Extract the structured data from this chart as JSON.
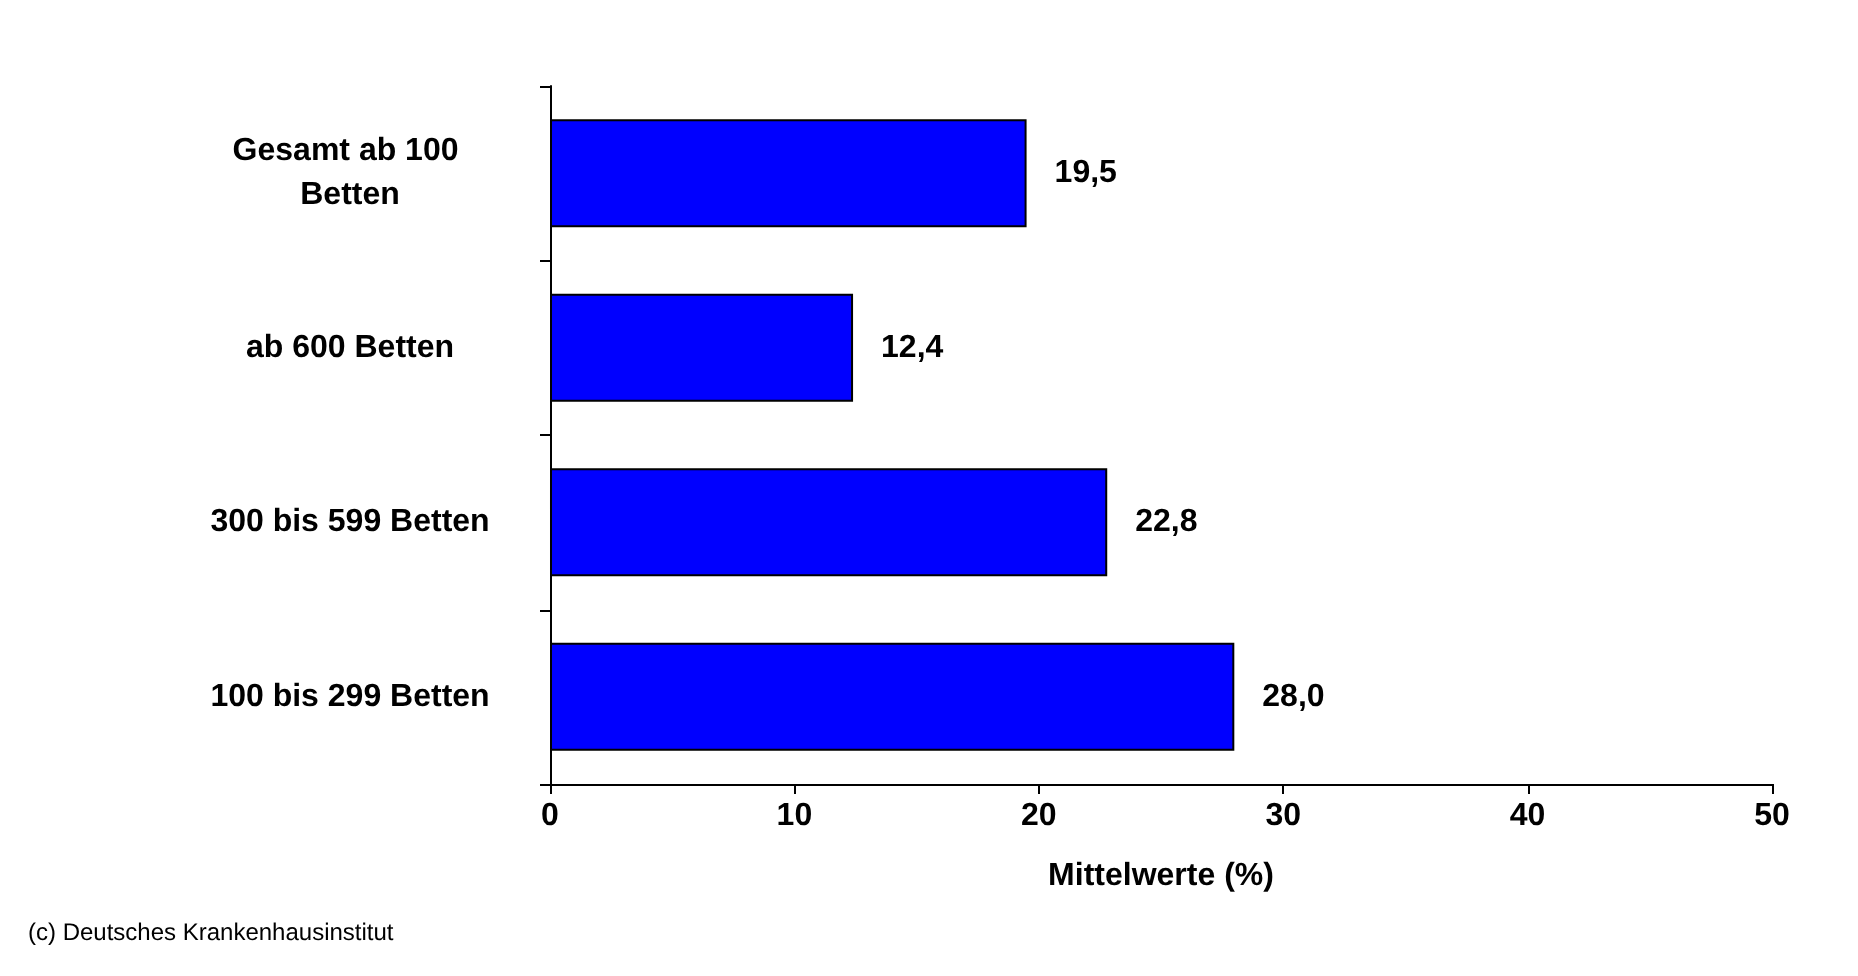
{
  "chart_data": {
    "type": "bar",
    "orientation": "horizontal",
    "categories": [
      "Gesamt ab 100 Betten",
      "ab 600 Betten",
      "300 bis 599 Betten",
      "100 bis 299 Betten"
    ],
    "values": [
      19.5,
      12.4,
      22.8,
      28.0
    ],
    "value_labels": [
      "19,5",
      "12,4",
      "22,8",
      "28,0"
    ],
    "color": "#0000ff",
    "xlim": [
      0,
      50
    ],
    "xticks": [
      0,
      10,
      20,
      30,
      40,
      50
    ],
    "xlabel": "Mittelwerte (%)",
    "grid": false,
    "annotations": [
      "(c) Deutsches Krankenhausinstitut"
    ]
  }
}
